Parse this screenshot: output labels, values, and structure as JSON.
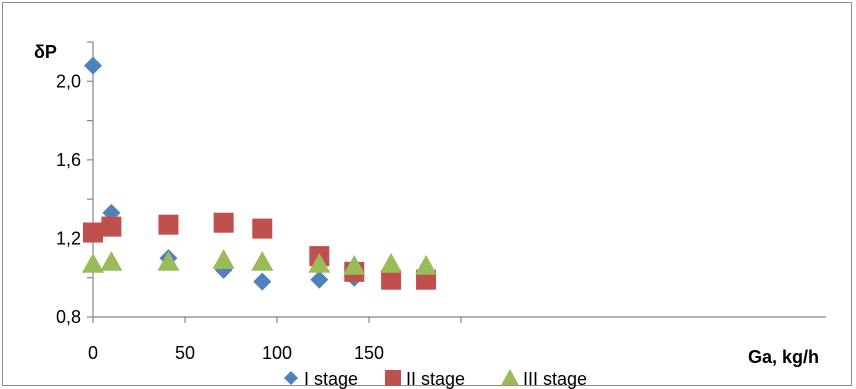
{
  "chart_data": {
    "type": "scatter",
    "title": "",
    "xlabel": "Ga, kg/h",
    "ylabel": "δP",
    "xlim": [
      0,
      200
    ],
    "ylim": [
      0.8,
      2.2
    ],
    "x_ticks": [
      {
        "value": 0,
        "label": "0"
      },
      {
        "value": 50,
        "label": "50"
      },
      {
        "value": 100,
        "label": "100"
      },
      {
        "value": 150,
        "label": "150"
      }
    ],
    "y_ticks": [
      {
        "value": 0.8,
        "label": "0,8"
      },
      {
        "value": 1.2,
        "label": "1,2"
      },
      {
        "value": 1.6,
        "label": "1,6"
      },
      {
        "value": 2.0,
        "label": "2,0"
      }
    ],
    "grid": false,
    "legend_position": "bottom",
    "series": [
      {
        "name": "I stage",
        "marker": "diamond",
        "color": "#4f81bd",
        "points": [
          {
            "x": 0,
            "y": 2.08
          },
          {
            "x": 10,
            "y": 1.33
          },
          {
            "x": 41,
            "y": 1.1
          },
          {
            "x": 71,
            "y": 1.04
          },
          {
            "x": 92,
            "y": 0.98
          },
          {
            "x": 123,
            "y": 0.99
          },
          {
            "x": 142,
            "y": 1.0
          }
        ]
      },
      {
        "name": "II stage",
        "marker": "square",
        "color": "#c0504d",
        "points": [
          {
            "x": 0,
            "y": 1.23
          },
          {
            "x": 10,
            "y": 1.26
          },
          {
            "x": 41,
            "y": 1.27
          },
          {
            "x": 71,
            "y": 1.28
          },
          {
            "x": 92,
            "y": 1.25
          },
          {
            "x": 123,
            "y": 1.11
          },
          {
            "x": 142,
            "y": 1.03
          },
          {
            "x": 162,
            "y": 0.99
          },
          {
            "x": 181,
            "y": 0.99
          }
        ]
      },
      {
        "name": "III stage",
        "marker": "triangle",
        "color": "#9bbb59",
        "points": [
          {
            "x": 0,
            "y": 1.07
          },
          {
            "x": 10,
            "y": 1.08
          },
          {
            "x": 41,
            "y": 1.08
          },
          {
            "x": 71,
            "y": 1.09
          },
          {
            "x": 92,
            "y": 1.08
          },
          {
            "x": 123,
            "y": 1.07
          },
          {
            "x": 142,
            "y": 1.06
          },
          {
            "x": 162,
            "y": 1.07
          },
          {
            "x": 181,
            "y": 1.06
          }
        ]
      }
    ]
  }
}
